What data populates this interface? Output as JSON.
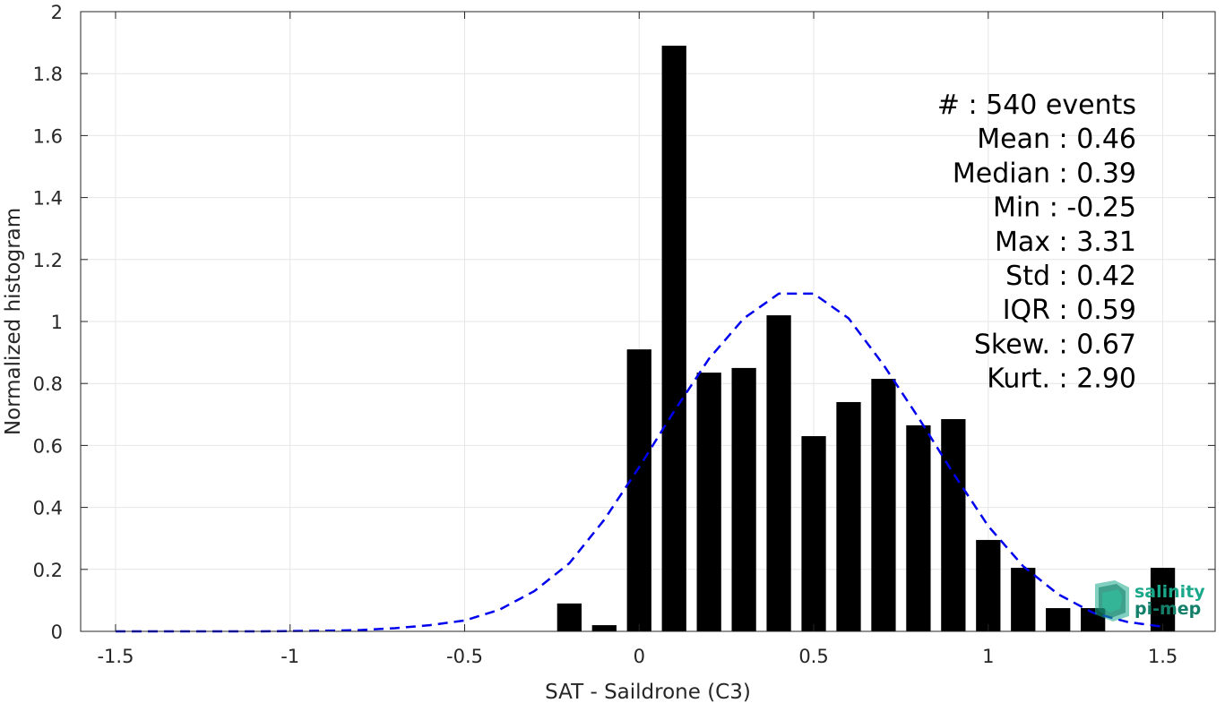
{
  "chart_data": {
    "type": "bar",
    "xlabel": "SAT - Saildrone (C3)",
    "ylabel": "Normalized histogram",
    "xlim": [
      -1.6,
      1.65
    ],
    "ylim": [
      0,
      2
    ],
    "grid": true,
    "xticks": [
      -1.5,
      -1,
      -0.5,
      0,
      0.5,
      1,
      1.5
    ],
    "xtick_labels": [
      "-1.5",
      "-1",
      "-0.5",
      "0",
      "0.5",
      "1",
      "1.5"
    ],
    "yticks": [
      0,
      0.2,
      0.4,
      0.6,
      0.8,
      1,
      1.2,
      1.4,
      1.6,
      1.8,
      2
    ],
    "ytick_labels": [
      "0",
      "0.2",
      "0.4",
      "0.6",
      "0.8",
      "1",
      "1.2",
      "1.4",
      "1.6",
      "1.8",
      "2"
    ],
    "bar_width": 0.07,
    "bars": {
      "x": [
        -0.2,
        -0.1,
        0,
        0.1,
        0.2,
        0.3,
        0.4,
        0.5,
        0.6,
        0.7,
        0.8,
        0.9,
        1.0,
        1.1,
        1.2,
        1.3,
        1.5
      ],
      "values": [
        0.09,
        0.02,
        0.91,
        1.89,
        0.835,
        0.85,
        1.02,
        0.63,
        0.74,
        0.815,
        0.665,
        0.685,
        0.295,
        0.205,
        0.075,
        0.075,
        0.205
      ],
      "color": "#000000"
    },
    "series": [
      {
        "type": "line",
        "style": "dashed",
        "color": "#0000ee",
        "x": [
          -1.5,
          -1.3,
          -1.1,
          -1.0,
          -0.9,
          -0.8,
          -0.7,
          -0.6,
          -0.5,
          -0.4,
          -0.3,
          -0.2,
          -0.1,
          0.0,
          0.1,
          0.2,
          0.3,
          0.4,
          0.5,
          0.6,
          0.7,
          0.8,
          0.9,
          1.0,
          1.1,
          1.2,
          1.3,
          1.4,
          1.5
        ],
        "y": [
          0,
          0,
          0,
          0.001,
          0.002,
          0.004,
          0.01,
          0.02,
          0.035,
          0.07,
          0.13,
          0.22,
          0.36,
          0.53,
          0.71,
          0.88,
          1.01,
          1.09,
          1.09,
          1.01,
          0.86,
          0.69,
          0.51,
          0.34,
          0.21,
          0.12,
          0.06,
          0.03,
          0.015
        ]
      }
    ],
    "stats": [
      "#  : 540 events",
      "Mean : 0.46",
      "Median : 0.39",
      "Min : -0.25",
      "Max : 3.31",
      "Std : 0.42",
      "IQR : 0.59",
      "Skew. : 0.67",
      "Kurt. : 2.90"
    ]
  },
  "logo": {
    "line1": "salinity",
    "line2": "pi-mep",
    "color": "#1aa88a"
  }
}
